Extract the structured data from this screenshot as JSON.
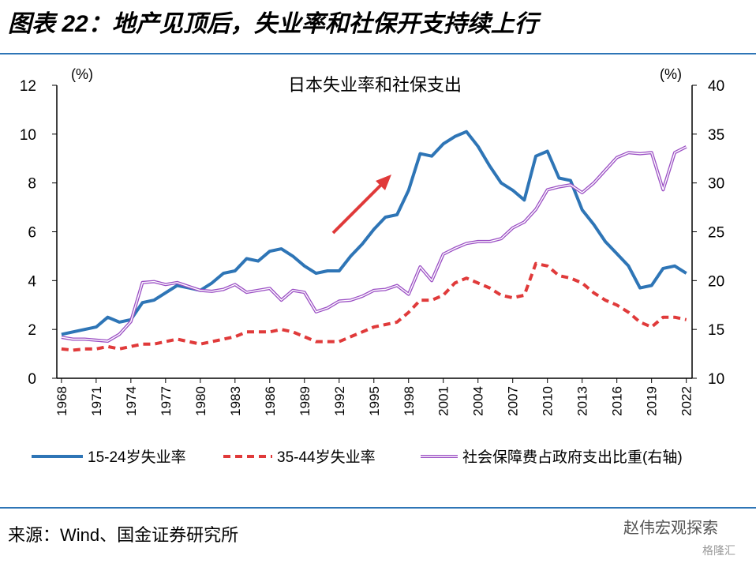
{
  "header": {
    "title": "图表 22：地产见顶后，失业率和社保开支持续上行"
  },
  "chart_data": {
    "type": "line",
    "title": "日本失业率和社保支出",
    "y_unit": "(%)",
    "y2_unit": "(%)",
    "x": [
      1968,
      1969,
      1970,
      1971,
      1972,
      1973,
      1974,
      1975,
      1976,
      1977,
      1978,
      1979,
      1980,
      1981,
      1982,
      1983,
      1984,
      1985,
      1986,
      1987,
      1988,
      1989,
      1990,
      1991,
      1992,
      1993,
      1994,
      1995,
      1996,
      1997,
      1998,
      1999,
      2000,
      2001,
      2002,
      2003,
      2004,
      2005,
      2006,
      2007,
      2008,
      2009,
      2010,
      2011,
      2012,
      2013,
      2014,
      2015,
      2016,
      2017,
      2018,
      2019,
      2020,
      2021,
      2022
    ],
    "xlim": [
      1967.6,
      2022.5
    ],
    "xticks": [
      1968,
      1971,
      1974,
      1977,
      1980,
      1983,
      1986,
      1989,
      1992,
      1995,
      1998,
      2001,
      2004,
      2007,
      2010,
      2013,
      2016,
      2019,
      2022
    ],
    "ylim": [
      0,
      12
    ],
    "yticks": [
      0,
      2,
      4,
      6,
      8,
      10,
      12
    ],
    "y2lim": [
      10,
      40
    ],
    "y2ticks": [
      10,
      15,
      20,
      25,
      30,
      35,
      40
    ],
    "grid": false,
    "legend": "bottom",
    "series": [
      {
        "name": "15-24岁失业率",
        "color": "#2e75b6",
        "style": "solid",
        "values": [
          1.8,
          1.9,
          2.0,
          2.1,
          2.5,
          2.3,
          2.4,
          3.1,
          3.2,
          3.5,
          3.8,
          3.7,
          3.6,
          3.9,
          4.3,
          4.4,
          4.9,
          4.8,
          5.2,
          5.3,
          5.0,
          4.6,
          4.3,
          4.4,
          4.4,
          5.0,
          5.5,
          6.1,
          6.6,
          6.7,
          7.7,
          9.2,
          9.1,
          9.6,
          9.9,
          10.1,
          9.5,
          8.7,
          8.0,
          7.7,
          7.3,
          9.1,
          9.3,
          8.2,
          8.1,
          6.9,
          6.3,
          5.6,
          5.1,
          4.6,
          3.7,
          3.8,
          4.5,
          4.6,
          4.3
        ]
      },
      {
        "name": "35-44岁失业率",
        "color": "#e03a3a",
        "style": "dashed",
        "values": [
          1.2,
          1.15,
          1.2,
          1.2,
          1.3,
          1.2,
          1.3,
          1.4,
          1.4,
          1.5,
          1.6,
          1.5,
          1.4,
          1.5,
          1.6,
          1.7,
          1.9,
          1.9,
          1.9,
          2.0,
          1.9,
          1.7,
          1.5,
          1.5,
          1.5,
          1.7,
          1.9,
          2.1,
          2.2,
          2.3,
          2.7,
          3.2,
          3.2,
          3.4,
          3.9,
          4.1,
          3.9,
          3.7,
          3.4,
          3.3,
          3.4,
          4.7,
          4.6,
          4.2,
          4.1,
          3.9,
          3.5,
          3.2,
          3.0,
          2.7,
          2.3,
          2.1,
          2.5,
          2.5,
          2.4
        ]
      },
      {
        "name": "社会保障费占政府支出比重(右轴)",
        "color": "#9b4fc4",
        "style": "double",
        "axis": "y2",
        "values": [
          14.2,
          14.0,
          14.0,
          13.9,
          13.8,
          14.5,
          15.8,
          19.8,
          19.9,
          19.6,
          19.8,
          19.4,
          19.0,
          18.9,
          19.1,
          19.6,
          18.8,
          19.0,
          19.2,
          18.0,
          19.0,
          18.8,
          16.8,
          17.2,
          17.9,
          18.0,
          18.4,
          19.0,
          19.1,
          19.5,
          18.6,
          21.4,
          20.0,
          22.7,
          23.3,
          23.8,
          24.0,
          24.0,
          24.3,
          25.4,
          26.0,
          27.3,
          29.3,
          29.6,
          29.8,
          29.0,
          30.0,
          31.3,
          32.6,
          33.1,
          33.0,
          33.1,
          29.3,
          33.1,
          33.7
        ]
      }
    ]
  },
  "footer": {
    "source": "来源：Wind、国金证券研究所",
    "watermark": "赵伟宏观探索",
    "logo": "格隆汇"
  }
}
